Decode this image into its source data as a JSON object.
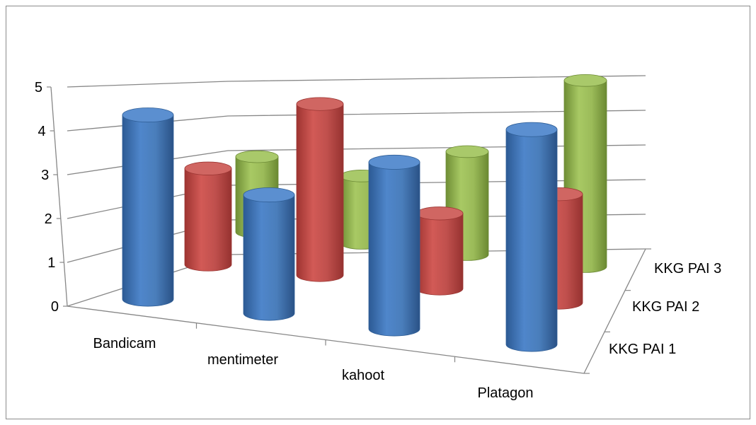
{
  "chart_data": {
    "type": "bar",
    "subtype": "3d-cylinder",
    "title": "",
    "categories": [
      "Bandicam",
      "mentimeter",
      "kahoot",
      "Platagon"
    ],
    "series": [
      {
        "name": "KKG PAI 1",
        "values": [
          4.2,
          2.7,
          3.8,
          4.9
        ],
        "color": "#4a7ebb"
      },
      {
        "name": "KKG PAI 2",
        "values": [
          2.3,
          4.1,
          1.8,
          2.6
        ],
        "color": "#c0504d"
      },
      {
        "name": "KKG PAI 3",
        "values": [
          1.9,
          1.7,
          2.6,
          4.7
        ],
        "color": "#9bbb59"
      }
    ],
    "yticks": [
      "0",
      "1",
      "2",
      "3",
      "4",
      "5"
    ],
    "ylim": [
      0,
      5
    ],
    "grid": true,
    "legend": "depth-axis-right"
  }
}
